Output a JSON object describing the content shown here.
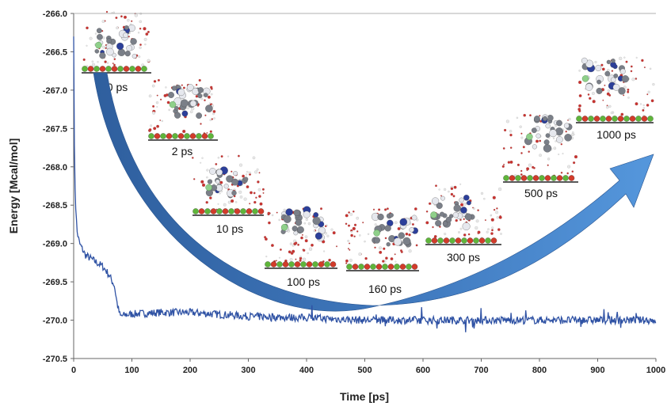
{
  "chart_data": {
    "type": "line",
    "xlabel": "Time [ps]",
    "ylabel": "Energy [Mcal/mol]",
    "xlim": [
      0,
      1000
    ],
    "ylim": [
      -270.5,
      -266.0
    ],
    "x_ticks": [
      "0",
      "100",
      "200",
      "300",
      "400",
      "500",
      "600",
      "700",
      "800",
      "900",
      "1000"
    ],
    "y_ticks": [
      "-266.0",
      "-266.5",
      "-267.0",
      "-267.5",
      "-268.0",
      "-268.5",
      "-269.0",
      "-269.5",
      "-270.0",
      "-270.5"
    ],
    "grid": false,
    "series": [
      {
        "color": "#2f52a4",
        "x": [
          0,
          1,
          2,
          4,
          6,
          10,
          20,
          30,
          40,
          50,
          60,
          70,
          75,
          80,
          90,
          100,
          150,
          200,
          300,
          400,
          500,
          600,
          700,
          800,
          900,
          1000
        ],
        "y": [
          -266.3,
          -267.6,
          -268.2,
          -268.6,
          -268.85,
          -269.0,
          -269.15,
          -269.2,
          -269.25,
          -269.3,
          -269.4,
          -269.55,
          -269.8,
          -269.95,
          -269.93,
          -269.92,
          -269.9,
          -269.9,
          -269.95,
          -269.97,
          -270.0,
          -270.0,
          -270.0,
          -270.0,
          -270.0,
          -270.0
        ]
      }
    ],
    "annotations": [
      {
        "label": "0 ps",
        "time": 0
      },
      {
        "label": "2 ps",
        "time": 2
      },
      {
        "label": "10 ps",
        "time": 10
      },
      {
        "label": "100 ps",
        "time": 100
      },
      {
        "label": "160 ps",
        "time": 160
      },
      {
        "label": "300 ps",
        "time": 300
      },
      {
        "label": "500 ps",
        "time": 500
      },
      {
        "label": "1000 ps",
        "time": 1000
      }
    ],
    "arrow_color": "#4a7fc4"
  }
}
